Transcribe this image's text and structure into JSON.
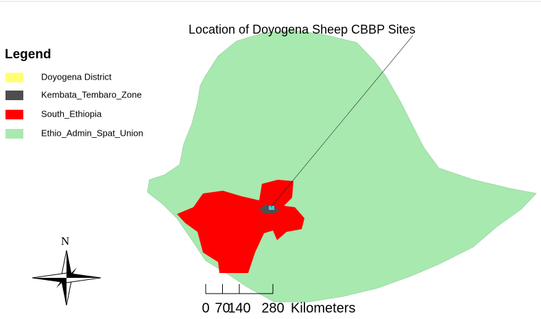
{
  "title": "Location of Doyogena Sheep CBBP Sites",
  "legend": {
    "title": "Legend",
    "items": [
      {
        "name": "Doyogena District",
        "color": "#ffff73"
      },
      {
        "name": "Kembata_Tembaro_Zone",
        "color": "#4e4e4e"
      },
      {
        "name": "South_Ethiopia",
        "color": "#ff0000"
      },
      {
        "name": "Ethio_Admin_Spat_Union",
        "color": "#a8e9b0"
      }
    ]
  },
  "north_arrow": "N",
  "scale_bar": {
    "ticks": [
      0,
      70,
      140,
      280
    ],
    "unit": "Kilometers"
  }
}
